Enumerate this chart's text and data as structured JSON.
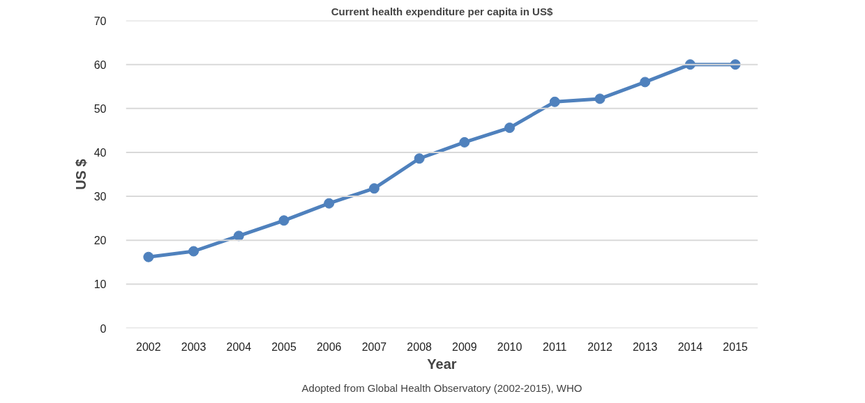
{
  "chart_data": {
    "type": "line",
    "title": "Current health expenditure per capita in US$",
    "xlabel": "Year",
    "ylabel": "US $",
    "categories": [
      "2002",
      "2003",
      "2004",
      "2005",
      "2006",
      "2007",
      "2008",
      "2009",
      "2010",
      "2011",
      "2012",
      "2013",
      "2014",
      "2015"
    ],
    "series": [
      {
        "color": "#4f81bd",
        "values": [
          16.2,
          17.5,
          21.0,
          24.5,
          28.4,
          31.8,
          38.6,
          42.3,
          45.6,
          51.5,
          52.2,
          56.0,
          60.0,
          60.0
        ]
      }
    ],
    "ylim": [
      0,
      70
    ],
    "yticks": [
      0,
      10,
      20,
      30,
      40,
      50,
      60,
      70
    ],
    "grid": "y",
    "marker": "circle",
    "line_style": "solid",
    "annotations": [
      "Adopted from Global Health Observatory (2002-2015), WHO"
    ]
  }
}
